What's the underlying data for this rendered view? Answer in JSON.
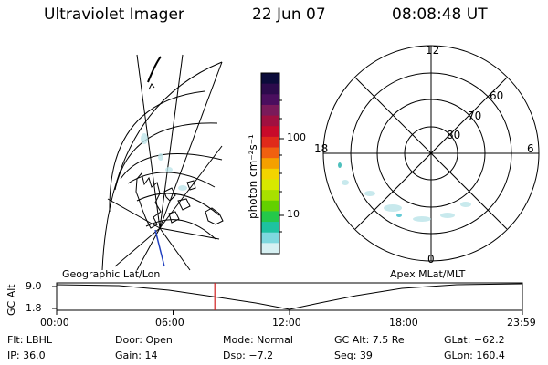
{
  "header": {
    "instrument": "Ultraviolet Imager",
    "date": "22 Jun 07",
    "time": "08:08:48 UT"
  },
  "colorbar": {
    "unit": "photon cm⁻²s⁻¹",
    "ticks": [
      "100",
      "10"
    ],
    "colors": [
      "#0b0b3a",
      "#2c0a4c",
      "#4a0e5e",
      "#7a1a5a",
      "#a01040",
      "#c80a2a",
      "#e02a1a",
      "#f06010",
      "#f5a000",
      "#f2d400",
      "#d7e800",
      "#a8e000",
      "#63d000",
      "#24c84a",
      "#1ec2a0",
      "#7ed8de",
      "#d6f0f2"
    ]
  },
  "left_map": {
    "label": "Geographic Lat/Lon"
  },
  "right_map": {
    "label": "Apex MLat/MLT",
    "clock_labels": {
      "top": "12",
      "left": "18",
      "right": "6",
      "bottom": "0"
    },
    "lat_labels": [
      "60",
      "70",
      "80"
    ]
  },
  "timeline": {
    "ylabel": "GC Alt",
    "ymax": "9.0",
    "ymin": "1.8",
    "xticks": [
      "00:00",
      "06:00",
      "12:00",
      "18:00",
      "23:59"
    ],
    "current_time_hours": 8.147,
    "marker_color": "#d02020"
  },
  "params": {
    "filter": "Flt: LBHL",
    "door": "Door: Open",
    "mode": "Mode: Normal",
    "gc_alt": "GC Alt: 7.5 Re",
    "glat": "GLat: −62.2",
    "ip": "IP: 36.0",
    "gain": "Gain: 14",
    "dsp": "Dsp:    −7.2",
    "seq": "Seq: 39",
    "glon": "GLon: 160.4"
  }
}
